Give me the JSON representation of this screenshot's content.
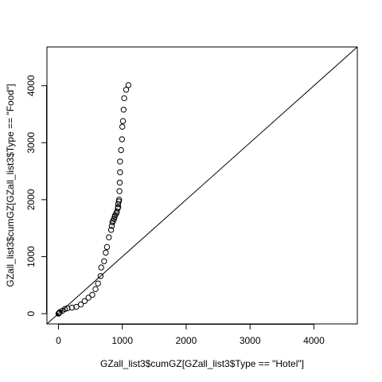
{
  "chart_data": {
    "type": "scatter",
    "title": "",
    "xlabel": "GZall_list3$cumGZ[GZall_list3$Type == \"Hotel\"]",
    "ylabel": "GZall_list3$cumGZ[GZall_list3$Type == \"Food\"]",
    "xlim": [
      -180,
      4680
    ],
    "ylim": [
      -180,
      4680
    ],
    "xticks": [
      0,
      1000,
      2000,
      3000,
      4000
    ],
    "yticks": [
      0,
      1000,
      2000,
      3000,
      4000
    ],
    "xtick_labels": [
      "0",
      "1000",
      "2000",
      "3000",
      "4000"
    ],
    "ytick_labels": [
      "0",
      "1000",
      "2000",
      "3000",
      "4000"
    ],
    "reference_line": {
      "type": "identity",
      "intercept": 0,
      "slope": 1
    },
    "marker": "open-circle",
    "points": [
      {
        "x": 0,
        "y": 0
      },
      {
        "x": 5,
        "y": 5
      },
      {
        "x": 12,
        "y": 15
      },
      {
        "x": 20,
        "y": 25
      },
      {
        "x": 60,
        "y": 50
      },
      {
        "x": 100,
        "y": 80
      },
      {
        "x": 140,
        "y": 95
      },
      {
        "x": 210,
        "y": 105
      },
      {
        "x": 280,
        "y": 120
      },
      {
        "x": 350,
        "y": 160
      },
      {
        "x": 410,
        "y": 220
      },
      {
        "x": 470,
        "y": 280
      },
      {
        "x": 530,
        "y": 330
      },
      {
        "x": 580,
        "y": 430
      },
      {
        "x": 620,
        "y": 530
      },
      {
        "x": 660,
        "y": 660
      },
      {
        "x": 670,
        "y": 810
      },
      {
        "x": 715,
        "y": 920
      },
      {
        "x": 740,
        "y": 1070
      },
      {
        "x": 760,
        "y": 1170
      },
      {
        "x": 790,
        "y": 1340
      },
      {
        "x": 825,
        "y": 1470
      },
      {
        "x": 835,
        "y": 1540
      },
      {
        "x": 845,
        "y": 1600
      },
      {
        "x": 855,
        "y": 1630
      },
      {
        "x": 870,
        "y": 1660
      },
      {
        "x": 880,
        "y": 1700
      },
      {
        "x": 890,
        "y": 1730
      },
      {
        "x": 905,
        "y": 1760
      },
      {
        "x": 915,
        "y": 1790
      },
      {
        "x": 930,
        "y": 1850
      },
      {
        "x": 935,
        "y": 1870
      },
      {
        "x": 935,
        "y": 1920
      },
      {
        "x": 945,
        "y": 1970
      },
      {
        "x": 950,
        "y": 2000
      },
      {
        "x": 955,
        "y": 2150
      },
      {
        "x": 960,
        "y": 2300
      },
      {
        "x": 965,
        "y": 2480
      },
      {
        "x": 965,
        "y": 2670
      },
      {
        "x": 980,
        "y": 2870
      },
      {
        "x": 995,
        "y": 3060
      },
      {
        "x": 1000,
        "y": 3280
      },
      {
        "x": 1010,
        "y": 3380
      },
      {
        "x": 1020,
        "y": 3580
      },
      {
        "x": 1030,
        "y": 3780
      },
      {
        "x": 1060,
        "y": 3930
      },
      {
        "x": 1095,
        "y": 4010
      }
    ]
  }
}
